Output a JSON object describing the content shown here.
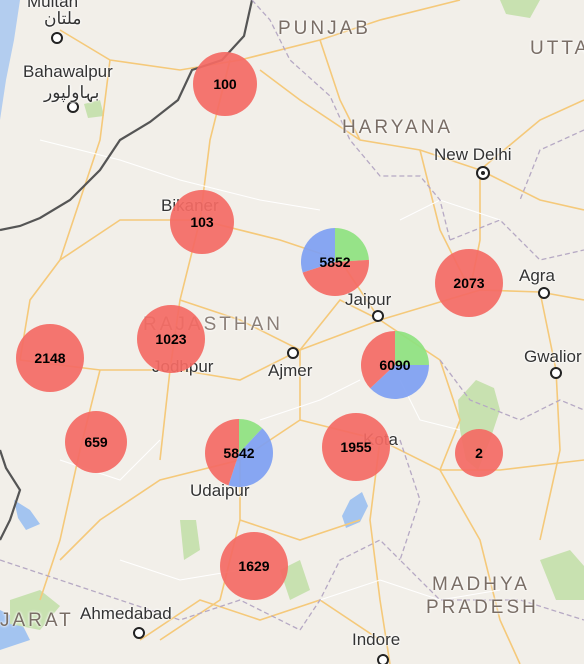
{
  "map": {
    "regions": [
      {
        "key": "punjab",
        "text": "PUNJAB"
      },
      {
        "key": "haryana",
        "text": "HARYANA"
      },
      {
        "key": "rajasthan",
        "text": "RAJASTHAN"
      },
      {
        "key": "madhya-pradesh-1",
        "text": "MADHYA"
      },
      {
        "key": "madhya-pradesh-2",
        "text": "PRADESH"
      },
      {
        "key": "uttarakhand",
        "text": "UTTA"
      },
      {
        "key": "gujarat",
        "text": "JARAT"
      }
    ],
    "cities": [
      {
        "key": "multan",
        "text": "Multan"
      },
      {
        "key": "multan-urdu",
        "text": "ملتان"
      },
      {
        "key": "bahawalpur",
        "text": "Bahawalpur"
      },
      {
        "key": "bahawalpur-urdu",
        "text": "بہاولپور"
      },
      {
        "key": "bikaner",
        "text": "Bikaner"
      },
      {
        "key": "new-delhi",
        "text": "New Delhi"
      },
      {
        "key": "jaipur",
        "text": "Jaipur"
      },
      {
        "key": "agra",
        "text": "Agra"
      },
      {
        "key": "jodhpur",
        "text": "Jodhpur"
      },
      {
        "key": "ajmer",
        "text": "Ajmer"
      },
      {
        "key": "gwalior",
        "text": "Gwalior"
      },
      {
        "key": "kota",
        "text": "Kota"
      },
      {
        "key": "udaipur",
        "text": "Udaipur"
      },
      {
        "key": "ahmedabad",
        "text": "Ahmedabad"
      },
      {
        "key": "indore",
        "text": "Indore"
      }
    ],
    "clusters": [
      {
        "key": "c100",
        "count": "100",
        "slices": [
          {
            "color": "#f46a64",
            "value": 1
          }
        ]
      },
      {
        "key": "c103",
        "count": "103",
        "slices": [
          {
            "color": "#f46a64",
            "value": 1
          }
        ]
      },
      {
        "key": "c5852",
        "count": "5852",
        "slices": [
          {
            "color": "#8ee27f",
            "value": 0.24
          },
          {
            "color": "#f46a64",
            "value": 0.46
          },
          {
            "color": "#7e9ff2",
            "value": 0.3
          }
        ]
      },
      {
        "key": "c2073",
        "count": "2073",
        "slices": [
          {
            "color": "#f46a64",
            "value": 1
          }
        ]
      },
      {
        "key": "c1023",
        "count": "1023",
        "slices": [
          {
            "color": "#f46a64",
            "value": 1
          }
        ]
      },
      {
        "key": "c2148",
        "count": "2148",
        "slices": [
          {
            "color": "#f46a64",
            "value": 1
          }
        ]
      },
      {
        "key": "c6090",
        "count": "6090",
        "slices": [
          {
            "color": "#8ee27f",
            "value": 0.25
          },
          {
            "color": "#7e9ff2",
            "value": 0.38
          },
          {
            "color": "#f46a64",
            "value": 0.37
          }
        ]
      },
      {
        "key": "c659",
        "count": "659",
        "slices": [
          {
            "color": "#f46a64",
            "value": 1
          }
        ]
      },
      {
        "key": "c5842",
        "count": "5842",
        "slices": [
          {
            "color": "#8ee27f",
            "value": 0.12
          },
          {
            "color": "#7e9ff2",
            "value": 0.43
          },
          {
            "color": "#f46a64",
            "value": 0.45
          }
        ]
      },
      {
        "key": "c1955",
        "count": "1955",
        "slices": [
          {
            "color": "#f46a64",
            "value": 1
          }
        ]
      },
      {
        "key": "c2",
        "count": "2",
        "slices": [
          {
            "color": "#f46a64",
            "value": 1
          }
        ]
      },
      {
        "key": "c1629",
        "count": "1629",
        "slices": [
          {
            "color": "#f46a64",
            "value": 1
          }
        ]
      }
    ]
  }
}
